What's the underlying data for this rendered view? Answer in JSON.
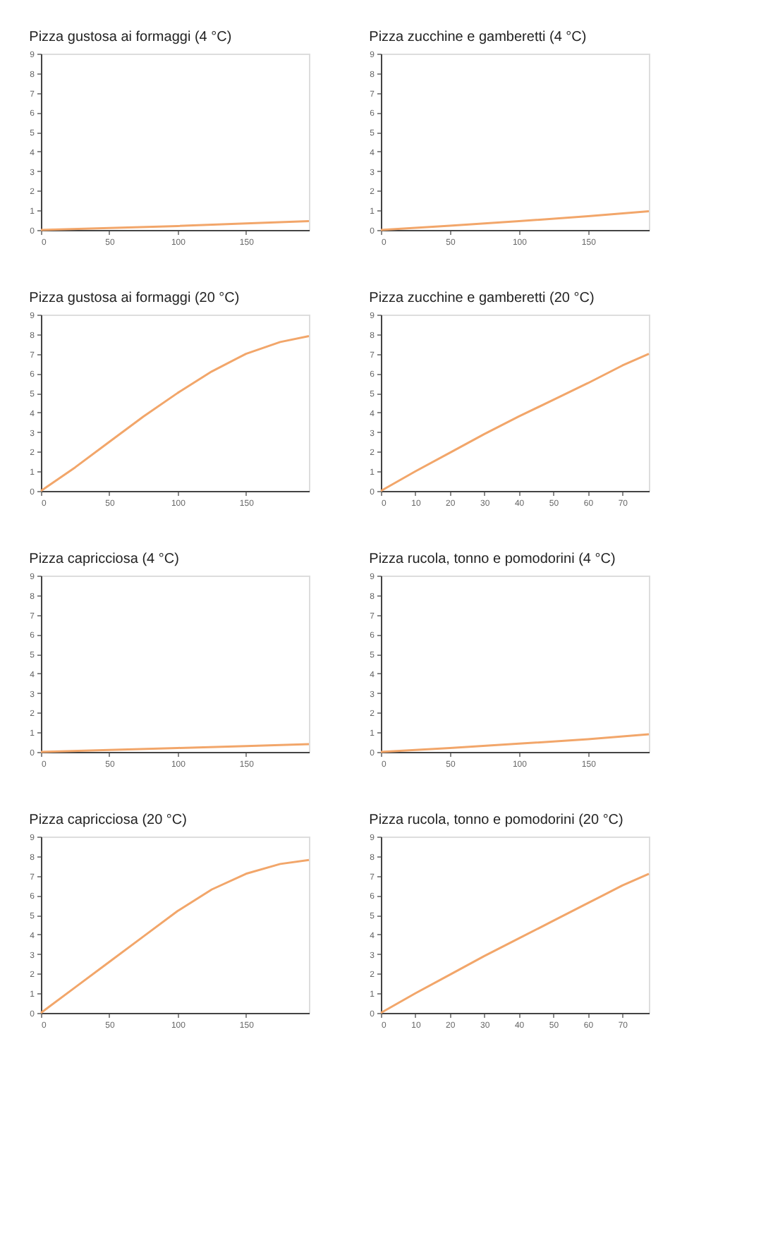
{
  "chart_data": [
    {
      "type": "line",
      "title": "Pizza gustosa ai formaggi (4 °C)",
      "x": [
        0,
        50,
        100,
        150,
        196
      ],
      "series": [
        {
          "color": "#f2a66a",
          "values": [
            0,
            0.1,
            0.2,
            0.33,
            0.45
          ]
        }
      ],
      "xlim": [
        0,
        196
      ],
      "xticks": [
        0,
        50,
        100,
        150
      ],
      "ylim": [
        0,
        9
      ],
      "yticks": [
        0,
        1,
        2,
        3,
        4,
        5,
        6,
        7,
        8,
        9
      ],
      "grid": false
    },
    {
      "type": "line",
      "title": "Pizza zucchine e gamberetti (4 °C)",
      "x": [
        0,
        50,
        100,
        150,
        194
      ],
      "series": [
        {
          "color": "#f2a66a",
          "values": [
            0,
            0.22,
            0.45,
            0.7,
            0.95
          ]
        }
      ],
      "xlim": [
        0,
        194
      ],
      "xticks": [
        0,
        50,
        100,
        150
      ],
      "ylim": [
        0,
        9
      ],
      "yticks": [
        0,
        1,
        2,
        3,
        4,
        5,
        6,
        7,
        8,
        9
      ],
      "grid": false
    },
    {
      "type": "line",
      "title": "Pizza gustosa ai formaggi (20 °C)",
      "x": [
        0,
        25,
        50,
        75,
        100,
        125,
        150,
        175,
        196
      ],
      "series": [
        {
          "color": "#f2a66a",
          "values": [
            0,
            1.2,
            2.5,
            3.8,
            5.0,
            6.1,
            7.0,
            7.6,
            7.9
          ]
        }
      ],
      "xlim": [
        0,
        196
      ],
      "xticks": [
        0,
        50,
        100,
        150
      ],
      "ylim": [
        0,
        9
      ],
      "yticks": [
        0,
        1,
        2,
        3,
        4,
        5,
        6,
        7,
        8,
        9
      ],
      "grid": false
    },
    {
      "type": "line",
      "title": "Pizza zucchine e gamberetti (20 °C)",
      "x": [
        0,
        10,
        20,
        30,
        40,
        50,
        60,
        70,
        77.7
      ],
      "series": [
        {
          "color": "#f2a66a",
          "values": [
            0,
            1.0,
            1.95,
            2.9,
            3.8,
            4.65,
            5.5,
            6.4,
            7.0
          ]
        }
      ],
      "xlim": [
        0,
        77.7
      ],
      "xticks": [
        0,
        10,
        20,
        30,
        40,
        50,
        60,
        70
      ],
      "ylim": [
        0,
        9
      ],
      "yticks": [
        0,
        1,
        2,
        3,
        4,
        5,
        6,
        7,
        8,
        9
      ],
      "grid": false
    },
    {
      "type": "line",
      "title": "Pizza capricciosa (4 °C)",
      "x": [
        0,
        50,
        100,
        150,
        196
      ],
      "series": [
        {
          "color": "#f2a66a",
          "values": [
            0,
            0.1,
            0.2,
            0.3,
            0.4
          ]
        }
      ],
      "xlim": [
        0,
        196
      ],
      "xticks": [
        0,
        50,
        100,
        150
      ],
      "ylim": [
        0,
        9
      ],
      "yticks": [
        0,
        1,
        2,
        3,
        4,
        5,
        6,
        7,
        8,
        9
      ],
      "grid": false
    },
    {
      "type": "line",
      "title": "Pizza rucola, tonno e pomodorini (4 °C)",
      "x": [
        0,
        50,
        100,
        150,
        194
      ],
      "series": [
        {
          "color": "#f2a66a",
          "values": [
            0,
            0.2,
            0.42,
            0.65,
            0.9
          ]
        }
      ],
      "xlim": [
        0,
        194
      ],
      "xticks": [
        0,
        50,
        100,
        150
      ],
      "ylim": [
        0,
        9
      ],
      "yticks": [
        0,
        1,
        2,
        3,
        4,
        5,
        6,
        7,
        8,
        9
      ],
      "grid": false
    },
    {
      "type": "line",
      "title": "Pizza capricciosa (20 °C)",
      "x": [
        0,
        25,
        50,
        75,
        100,
        125,
        150,
        175,
        196
      ],
      "series": [
        {
          "color": "#f2a66a",
          "values": [
            0,
            1.3,
            2.6,
            3.9,
            5.2,
            6.3,
            7.1,
            7.6,
            7.8
          ]
        }
      ],
      "xlim": [
        0,
        196
      ],
      "xticks": [
        0,
        50,
        100,
        150
      ],
      "ylim": [
        0,
        9
      ],
      "yticks": [
        0,
        1,
        2,
        3,
        4,
        5,
        6,
        7,
        8,
        9
      ],
      "grid": false
    },
    {
      "type": "line",
      "title": "Pizza rucola, tonno e pomodorini (20 °C)",
      "x": [
        0,
        10,
        20,
        30,
        40,
        50,
        60,
        70,
        77.7
      ],
      "series": [
        {
          "color": "#f2a66a",
          "values": [
            0,
            1.0,
            1.95,
            2.9,
            3.8,
            4.7,
            5.6,
            6.5,
            7.1
          ]
        }
      ],
      "xlim": [
        0,
        77.7
      ],
      "xticks": [
        0,
        10,
        20,
        30,
        40,
        50,
        60,
        70
      ],
      "ylim": [
        0,
        9
      ],
      "yticks": [
        0,
        1,
        2,
        3,
        4,
        5,
        6,
        7,
        8,
        9
      ],
      "grid": false
    }
  ]
}
